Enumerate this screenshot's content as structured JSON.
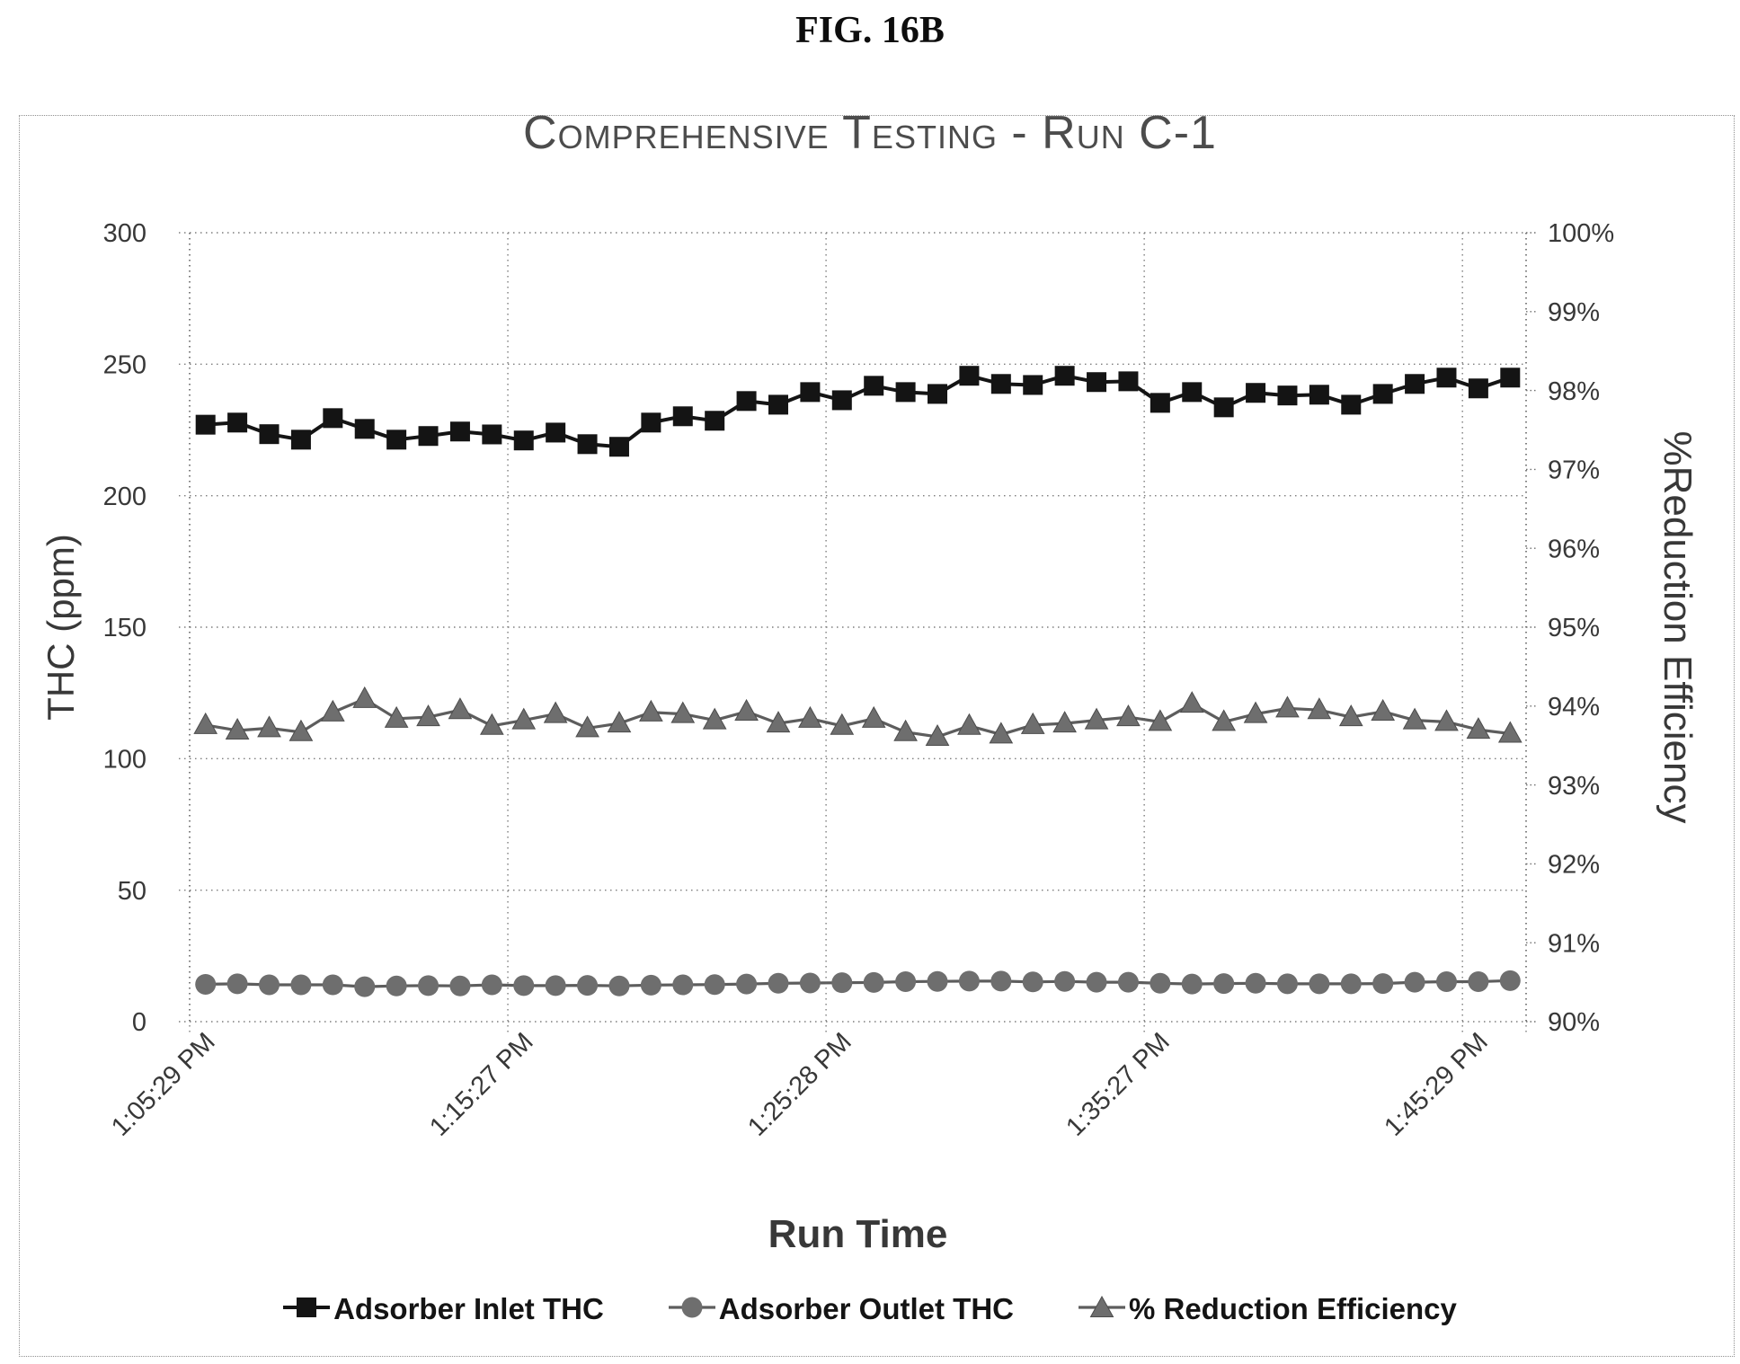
{
  "figure_label": "FIG. 16B",
  "chart_data": {
    "type": "line",
    "title": "Comprehensive Testing - Run C-1",
    "xlabel": "Run Time",
    "ylabel_left": "THC (ppm)",
    "ylabel_right": "%Reduction Efficiency",
    "ylim_left": [
      0,
      300
    ],
    "yticks_left": [
      0,
      50,
      100,
      150,
      200,
      250,
      300
    ],
    "ylim_right": [
      90,
      100
    ],
    "yticks_right": [
      "90%",
      "91%",
      "92%",
      "93%",
      "94%",
      "95%",
      "96%",
      "97%",
      "98%",
      "99%",
      "100%"
    ],
    "xticklabels": [
      "1:05:29 PM",
      "1:15:27 PM",
      "1:25:28 PM",
      "1:35:27 PM",
      "1:45:29 PM"
    ],
    "xtick_indices": [
      0,
      10,
      20,
      30,
      40
    ],
    "n_points": 42,
    "grid": "dotted",
    "legend_position": "bottom",
    "series": [
      {
        "name": "Adsorber Inlet THC",
        "axis": "left",
        "marker": "square",
        "color": "#141414",
        "values": [
          227.0,
          227.8,
          223.4,
          221.3,
          229.5,
          225.4,
          221.3,
          222.7,
          224.4,
          223.3,
          221.0,
          224.0,
          219.6,
          218.6,
          227.8,
          230.2,
          228.5,
          236.0,
          234.6,
          239.4,
          236.3,
          241.8,
          239.4,
          238.7,
          245.6,
          242.5,
          242.1,
          245.6,
          243.2,
          243.5,
          235.3,
          239.4,
          233.6,
          239.1,
          238.1,
          238.4,
          234.6,
          238.7,
          242.5,
          244.9,
          240.8,
          244.9
        ]
      },
      {
        "name": "Adsorber Outlet THC",
        "axis": "left",
        "marker": "circle",
        "color": "#6e6e6e",
        "values": [
          14.2,
          14.4,
          14.0,
          14.0,
          14.0,
          13.3,
          13.6,
          13.7,
          13.6,
          14.0,
          13.7,
          13.7,
          13.8,
          13.6,
          13.9,
          14.0,
          14.1,
          14.3,
          14.6,
          14.7,
          14.8,
          14.9,
          15.2,
          15.3,
          15.4,
          15.4,
          15.1,
          15.3,
          15.0,
          15.0,
          14.6,
          14.3,
          14.5,
          14.6,
          14.4,
          14.4,
          14.4,
          14.5,
          15.0,
          15.2,
          15.2,
          15.6
        ]
      },
      {
        "name": "% Reduction Efficiency",
        "axis": "right",
        "marker": "triangle",
        "color": "#6e6e6e",
        "values": [
          93.76,
          93.69,
          93.72,
          93.67,
          93.92,
          94.09,
          93.84,
          93.86,
          93.95,
          93.75,
          93.82,
          93.9,
          93.72,
          93.78,
          93.92,
          93.9,
          93.82,
          93.93,
          93.78,
          93.84,
          93.75,
          93.84,
          93.67,
          93.61,
          93.75,
          93.64,
          93.76,
          93.78,
          93.82,
          93.86,
          93.8,
          94.03,
          93.8,
          93.9,
          93.97,
          93.95,
          93.86,
          93.93,
          93.82,
          93.8,
          93.7,
          93.65
        ]
      }
    ]
  }
}
